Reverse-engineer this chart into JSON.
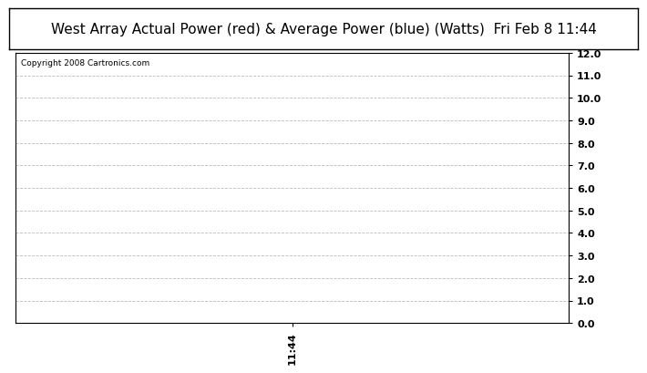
{
  "title": "West Array Actual Power (red) & Average Power (blue) (Watts)  Fri Feb 8 11:44",
  "copyright_text": "Copyright 2008 Cartronics.com",
  "x_tick_labels": [
    "11:44"
  ],
  "x_tick_positions": [
    0.5
  ],
  "xlim": [
    0,
    1
  ],
  "ylim": [
    0.0,
    12.0
  ],
  "yticks": [
    0.0,
    1.0,
    2.0,
    3.0,
    4.0,
    5.0,
    6.0,
    7.0,
    8.0,
    9.0,
    10.0,
    11.0,
    12.0
  ],
  "grid_color": "#bbbbbb",
  "background_color": "#ffffff",
  "plot_bg_color": "#ffffff",
  "title_fontsize": 11,
  "copyright_fontsize": 6.5,
  "tick_fontsize": 8,
  "title_bg_color": "#ffffff"
}
